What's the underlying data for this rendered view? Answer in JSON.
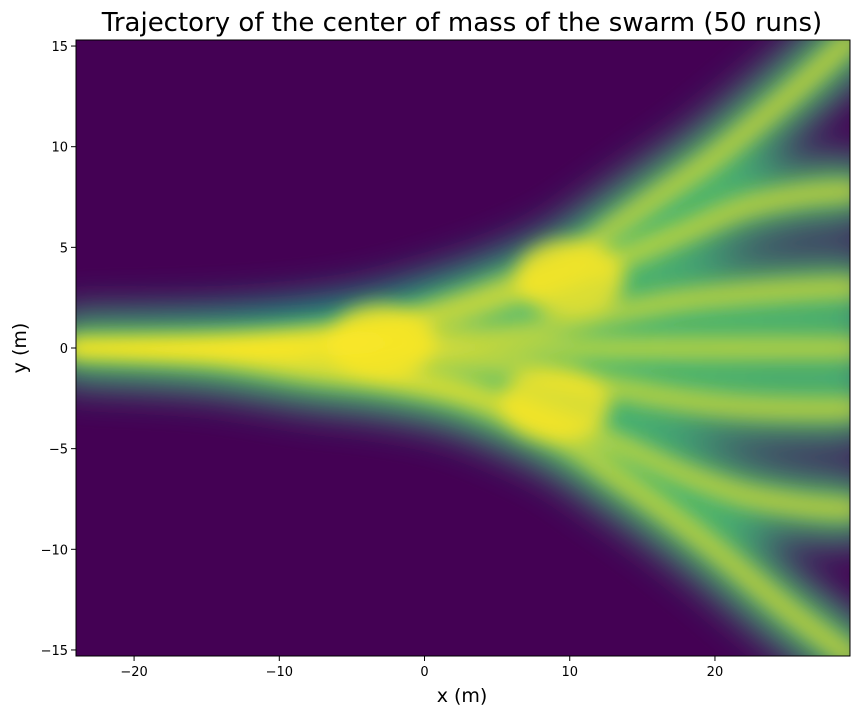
{
  "chart_data": {
    "type": "heatmap",
    "title": "Trajectory of the center of mass of the swarm (50 runs)",
    "xlabel": "x (m)",
    "ylabel": "y (m)",
    "xlim": [
      -24,
      29.3
    ],
    "ylim": [
      -15.3,
      15.3
    ],
    "x_ticks": [
      -20,
      -10,
      0,
      10,
      20
    ],
    "y_ticks": [
      -15,
      -10,
      -5,
      0,
      5,
      10,
      15
    ],
    "x_tick_labels": [
      "−20",
      "−10",
      "0",
      "10",
      "20"
    ],
    "y_tick_labels": [
      "−15",
      "−10",
      "−5",
      "0",
      "5",
      "10",
      "15"
    ],
    "colormap": "viridis",
    "background_color": "#440154",
    "high_color": "#fde725",
    "grid": false,
    "legend": "none",
    "trajectory_branches": [
      {
        "x": [
          -24,
          -15,
          -8,
          -3,
          2,
          6,
          10,
          13,
          16,
          20,
          25,
          29.3
        ],
        "y": [
          0,
          0.2,
          0.6,
          1.2,
          2.2,
          3.2,
          4.5,
          6.0,
          7.5,
          9.5,
          12.5,
          15.3
        ]
      },
      {
        "x": [
          -24,
          -15,
          -8,
          -3,
          2,
          6,
          10,
          14,
          18,
          22,
          26,
          29.3
        ],
        "y": [
          0,
          0.1,
          0.5,
          0.9,
          1.6,
          2.5,
          3.5,
          4.6,
          5.8,
          7.0,
          7.6,
          7.8
        ]
      },
      {
        "x": [
          -24,
          -15,
          -8,
          -3,
          2,
          6,
          10,
          14,
          18,
          22,
          26,
          29.3
        ],
        "y": [
          0,
          0,
          0.2,
          0.3,
          0.5,
          0.8,
          1.3,
          1.9,
          2.4,
          2.7,
          2.9,
          3.0
        ]
      },
      {
        "x": [
          -24,
          -15,
          -8,
          -3,
          2,
          6,
          10,
          14,
          18,
          22,
          26,
          29.3
        ],
        "y": [
          0,
          0,
          0,
          0,
          0,
          0,
          0,
          0,
          0,
          0,
          0,
          0
        ]
      },
      {
        "x": [
          -24,
          -15,
          -8,
          -3,
          2,
          6,
          10,
          14,
          18,
          22,
          26,
          29.3
        ],
        "y": [
          0,
          0,
          -0.2,
          -0.4,
          -0.7,
          -1.0,
          -1.6,
          -2.1,
          -2.6,
          -2.9,
          -3.0,
          -3.0
        ]
      },
      {
        "x": [
          -24,
          -15,
          -8,
          -3,
          2,
          6,
          10,
          14,
          18,
          22,
          26,
          29.3
        ],
        "y": [
          0,
          -0.2,
          -0.8,
          -1.3,
          -1.9,
          -2.7,
          -3.8,
          -5.0,
          -6.3,
          -7.3,
          -7.8,
          -8.0
        ]
      },
      {
        "x": [
          -24,
          -15,
          -8,
          -3,
          2,
          6,
          10,
          13,
          16,
          20,
          25,
          29.3
        ],
        "y": [
          0,
          -0.4,
          -1.2,
          -1.6,
          -2.3,
          -3.4,
          -4.8,
          -6.3,
          -7.8,
          -10.0,
          -13.0,
          -15.3
        ]
      }
    ],
    "density_peaks": [
      {
        "x": -3,
        "y": 0.3
      },
      {
        "x": 9,
        "y": -2.8
      },
      {
        "x": 10,
        "y": 3.5
      }
    ]
  }
}
